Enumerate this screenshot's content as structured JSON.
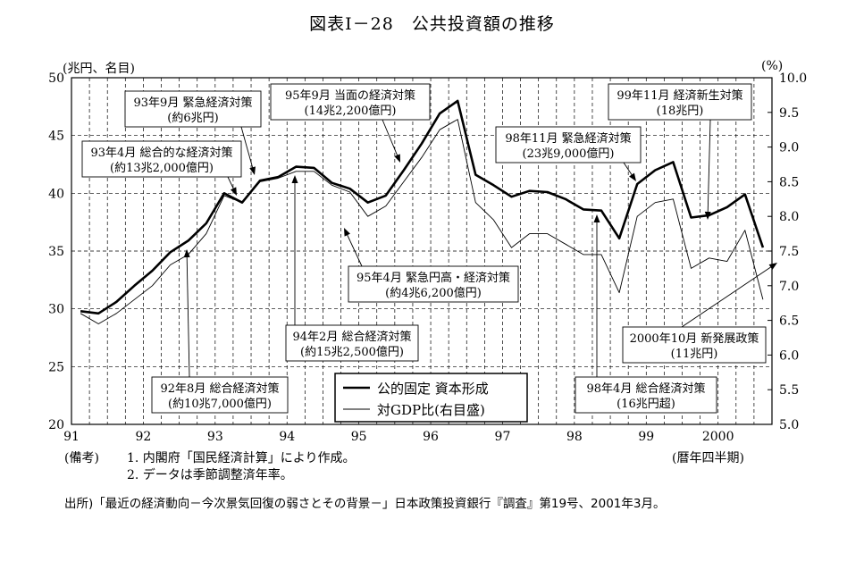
{
  "title": "図表Ⅰ－28　公共投資額の推移",
  "left_axis_unit": "(兆円、名目)",
  "right_axis_unit": "(%)",
  "x_axis_unit": "(暦年四半期)",
  "notes": {
    "prefix": "(備考)",
    "line1": "1. 内閣府「国民経済計算」により作成。",
    "line2": "2. データは季節調整済年率。"
  },
  "source": "出所)「最近の経済動向－今次景気回復の弱さとその背景－」日本政策投資銀行『調査』第19号、2001年3月。",
  "chart_data": {
    "type": "line",
    "title": "図表Ⅰ－28　公共投資額の推移",
    "x_tick_labels": [
      "91",
      "92",
      "93",
      "94",
      "95",
      "96",
      "97",
      "98",
      "99",
      "2000"
    ],
    "x_quarters": [
      "91Q1",
      "91Q2",
      "91Q3",
      "91Q4",
      "92Q1",
      "92Q2",
      "92Q3",
      "92Q4",
      "93Q1",
      "93Q2",
      "93Q3",
      "93Q4",
      "94Q1",
      "94Q2",
      "94Q3",
      "94Q4",
      "95Q1",
      "95Q2",
      "95Q3",
      "95Q4",
      "96Q1",
      "96Q2",
      "96Q3",
      "96Q4",
      "97Q1",
      "97Q2",
      "97Q3",
      "97Q4",
      "98Q1",
      "98Q2",
      "98Q3",
      "98Q4",
      "99Q1",
      "99Q2",
      "99Q3",
      "99Q4",
      "2000Q1",
      "2000Q2",
      "2000Q3"
    ],
    "ylim_left": [
      20,
      50
    ],
    "y_ticks_left": [
      20,
      25,
      30,
      35,
      40,
      45,
      50
    ],
    "ylim_right": [
      5.0,
      10.0
    ],
    "y_ticks_right": [
      "5.0",
      "5.5",
      "6.0",
      "6.5",
      "7.0",
      "7.5",
      "8.0",
      "8.5",
      "9.0",
      "9.5",
      "10.0"
    ],
    "grid": "vertical dashed lines at each quarter, horizontal dashed lines at left-axis ticks",
    "legend": {
      "placement": "bottom-center",
      "entries": [
        "公的固定 資本形成",
        "対GDP比(右目盛)"
      ]
    },
    "series": [
      {
        "name": "公的固定 資本形成",
        "axis": "left",
        "style": "thick",
        "values": [
          29.8,
          29.6,
          30.6,
          32.0,
          33.3,
          34.9,
          35.9,
          37.4,
          40.0,
          39.2,
          41.1,
          41.4,
          42.3,
          42.2,
          40.9,
          40.4,
          39.2,
          39.8,
          42.0,
          44.3,
          46.9,
          48.0,
          41.6,
          40.7,
          39.7,
          40.2,
          40.1,
          39.5,
          38.6,
          38.5,
          36.1,
          40.8,
          42.0,
          42.7,
          37.9,
          38.1,
          38.8,
          39.9,
          35.3
        ]
      },
      {
        "name": "対GDP比(右目盛)",
        "axis": "right",
        "style": "thin",
        "values": [
          6.6,
          6.45,
          6.6,
          6.8,
          7.0,
          7.3,
          7.45,
          7.75,
          8.3,
          8.2,
          8.5,
          8.55,
          8.65,
          8.65,
          8.45,
          8.35,
          8.0,
          8.15,
          8.5,
          8.85,
          9.25,
          9.4,
          8.2,
          7.95,
          7.55,
          7.75,
          7.75,
          7.6,
          7.45,
          7.45,
          6.9,
          8.0,
          8.2,
          8.25,
          7.25,
          7.4,
          7.35,
          7.8,
          6.8
        ]
      }
    ],
    "annotations": [
      {
        "line1": "92年8月 総合経済対策",
        "line2": "(約10兆7,000億円)",
        "quarter": 6
      },
      {
        "line1": "93年4月 総合的な経済対策",
        "line2": "(約13兆2,000億円)",
        "quarter": 9
      },
      {
        "line1": "93年9月 緊急経済対策",
        "line2": "(約6兆円)",
        "quarter": 10
      },
      {
        "line1": "94年2月 総合経済対策",
        "line2": "(約15兆2,500億円)",
        "quarter": 12
      },
      {
        "line1": "95年4月 緊急円高・経済対策",
        "line2": "(約4兆6,200億円)",
        "quarter": 17
      },
      {
        "line1": "95年9月 当面の経済対策",
        "line2": "(14兆2,200億円)",
        "quarter": 19
      },
      {
        "line1": "98年4月 総合経済対策",
        "line2": "(16兆円超)",
        "quarter": 29
      },
      {
        "line1": "98年11月 緊急経済対策",
        "line2": "(23兆9,000億円)",
        "quarter": 31
      },
      {
        "line1": "99年11月 経済新生対策",
        "line2": "(18兆円)",
        "quarter": 35
      },
      {
        "line1": "2000年10月 新発展政策",
        "line2": "(11兆円)",
        "quarter": 38
      }
    ]
  }
}
